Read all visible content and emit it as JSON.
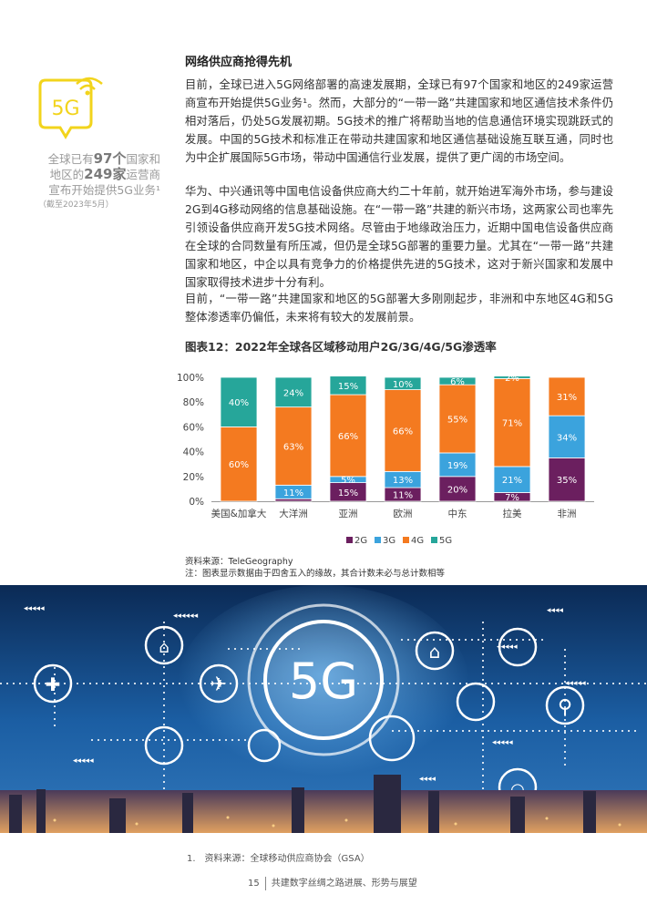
{
  "sidebar": {
    "line1_pre": "全球已有",
    "countries": "97个",
    "line1_post": "国家和",
    "line2_pre": "地区的",
    "operators": "249家",
    "line2_post": "运营商",
    "line3": "宣布开始提供5G业务¹",
    "note": "（截至2023年5月）",
    "icon_label": "5G"
  },
  "heading": "网络供应商抢得先机",
  "paragraphs": [
    "目前，全球已进入5G网络部署的高速发展期，全球已有97个国家和地区的249家运营商宣布开始提供5G业务¹。然而，大部分的“一带一路”共建国家和地区通信技术条件仍相对落后，仍处5G发展初期。5G技术的推广将帮助当地的信息通信环境实现跳跃式的发展。中国的5G技术和标准正在带动共建国家和地区通信基础设施互联互通，同时也为中企扩展国际5G市场，带动中国通信行业发展，提供了更广阔的市场空间。",
    "华为、中兴通讯等中国电信设备供应商大约二十年前，就开始进军海外市场，参与建设2G到4G移动网络的信息基础设施。在“一带一路”共建的新兴市场，这两家公司也率先引领设备供应商开发5G技术网络。尽管由于地缘政治压力，近期中国电信设备供应商在全球的合同数量有所压减，但仍是全球5G部署的重要力量。尤其在“一带一路”共建国家和地区，中企以具有竞争力的价格提供先进的5G技术，这对于新兴国家和发展中国家取得技术进步十分有利。",
    "目前，“一带一路”共建国家和地区的5G部署大多刚刚起步，非洲和中东地区4G和5G整体渗透率仍偏低，未来将有较大的发展前景。"
  ],
  "chart_title": "图表12：2022年全球各区域移动用户2G/3G/4G/5G渗透率",
  "chart_data": {
    "type": "bar",
    "stacked": true,
    "categories": [
      "美国&加拿大",
      "大洋洲",
      "亚洲",
      "欧洲",
      "中东",
      "拉美",
      "非洲"
    ],
    "series": [
      {
        "name": "2G",
        "color": "#6b1f5f",
        "values": [
          0,
          2,
          15,
          11,
          20,
          7,
          35
        ],
        "labels": [
          "",
          "",
          "15%",
          "11%",
          "20%",
          "7%",
          "35%"
        ]
      },
      {
        "name": "3G",
        "color": "#3ba3dd",
        "values": [
          0,
          11,
          5,
          13,
          19,
          21,
          34
        ],
        "labels": [
          "",
          "11%",
          "5%",
          "13%",
          "19%",
          "21%",
          "34%"
        ]
      },
      {
        "name": "4G",
        "color": "#f47a20",
        "values": [
          60,
          63,
          66,
          66,
          55,
          71,
          31
        ],
        "labels": [
          "60%",
          "63%",
          "66%",
          "66%",
          "55%",
          "71%",
          "31%"
        ]
      },
      {
        "name": "5G",
        "color": "#26a69a",
        "values": [
          40,
          24,
          15,
          10,
          6,
          2,
          0
        ],
        "labels": [
          "40%",
          "24%",
          "15%",
          "10%",
          "6%",
          "2%",
          ""
        ]
      }
    ],
    "y_ticks": [
      "0%",
      "20%",
      "40%",
      "60%",
      "80%",
      "100%"
    ],
    "ylim": [
      0,
      100
    ],
    "legend_position": "bottom",
    "grid": false
  },
  "source": {
    "line1": "资料来源：TeleGeography",
    "line2": "注：图表显示数据由于四舍五入的缘故，其合计数未必与总计数相等"
  },
  "hero": {
    "label": "5G"
  },
  "footnote": "1.　资料来源：全球移动供应商协会（GSA）",
  "footer": {
    "page": "15",
    "title": "共建数字丝绸之路进展、形势与展望"
  }
}
